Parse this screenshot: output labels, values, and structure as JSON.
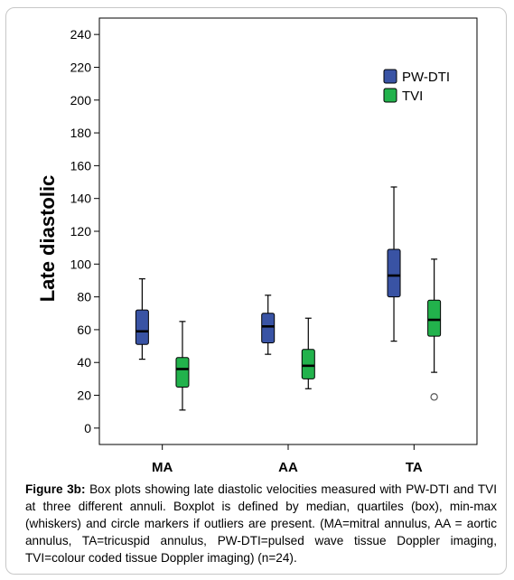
{
  "chart_data": {
    "type": "boxplot",
    "title": "",
    "xlabel": "",
    "ylabel": "Late diastolic",
    "ylim": [
      -10,
      250
    ],
    "yticks": [
      0,
      20,
      40,
      60,
      80,
      100,
      120,
      140,
      160,
      180,
      200,
      220,
      240
    ],
    "categories": [
      "MA",
      "AA",
      "TA"
    ],
    "legend_position": "top-right",
    "series": [
      {
        "name": "PW-DTI",
        "color": "#3953a4",
        "boxes": [
          {
            "min": 42,
            "q1": 51,
            "median": 59,
            "q3": 72,
            "max": 91,
            "outliers": []
          },
          {
            "min": 45,
            "q1": 52,
            "median": 62,
            "q3": 70,
            "max": 81,
            "outliers": []
          },
          {
            "min": 53,
            "q1": 80,
            "median": 93,
            "q3": 109,
            "max": 147,
            "outliers": []
          }
        ]
      },
      {
        "name": "TVI",
        "color": "#22b24c",
        "boxes": [
          {
            "min": 11,
            "q1": 25,
            "median": 36,
            "q3": 43,
            "max": 65,
            "outliers": []
          },
          {
            "min": 24,
            "q1": 30,
            "median": 38,
            "q3": 48,
            "max": 67,
            "outliers": []
          },
          {
            "min": 34,
            "q1": 56,
            "median": 66,
            "q3": 78,
            "max": 103,
            "outliers": [
              19
            ]
          }
        ]
      }
    ]
  },
  "caption": {
    "label": "Figure 3b:",
    "text": " Box plots showing late diastolic velocities measured with PW-DTI and TVI at three different annuli. Boxplot is defined by median, quartiles (box), min-max (whiskers) and circle markers if outliers are present. (MA=mitral annulus, AA = aortic annulus, TA=tricuspid annulus, PW-DTI=pulsed wave tissue Doppler imaging, TVI=colour coded tissue Doppler imaging) (n=24)."
  }
}
